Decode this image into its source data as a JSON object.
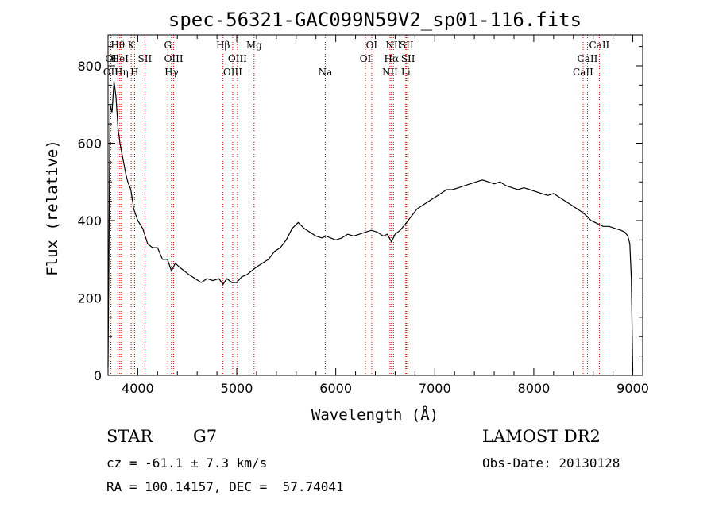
{
  "chart_data": {
    "type": "line",
    "title": "spec-56321-GAC099N59V2_sp01-116.fits",
    "xlabel": "Wavelength (Å)",
    "ylabel": "Flux (relative)",
    "xlim": [
      3700,
      9100
    ],
    "ylim": [
      0,
      880
    ],
    "xticks": [
      4000,
      5000,
      6000,
      7000,
      8000,
      9000
    ],
    "yticks": [
      0,
      200,
      400,
      600,
      800
    ],
    "grid": false,
    "line_color": "#000000",
    "marker_color": "#cc0000",
    "series": [
      {
        "x": [
          3700,
          3720,
          3740,
          3760,
          3780,
          3800,
          3820,
          3850,
          3880,
          3900,
          3930,
          3960,
          4000,
          4050,
          4100,
          4150,
          4200,
          4250,
          4300,
          4340,
          4380,
          4420,
          4470,
          4520,
          4580,
          4640,
          4700,
          4760,
          4820,
          4860,
          4900,
          4950,
          5000,
          5050,
          5100,
          5150,
          5200,
          5260,
          5320,
          5380,
          5440,
          5500,
          5560,
          5620,
          5680,
          5740,
          5800,
          5860,
          5900,
          5950,
          6000,
          6060,
          6120,
          6180,
          6240,
          6300,
          6360,
          6420,
          6480,
          6520,
          6563,
          6600,
          6650,
          6700,
          6760,
          6820,
          6880,
          6940,
          7000,
          7060,
          7120,
          7180,
          7240,
          7300,
          7360,
          7420,
          7480,
          7540,
          7600,
          7660,
          7720,
          7780,
          7840,
          7900,
          7960,
          8020,
          8080,
          8140,
          8200,
          8260,
          8320,
          8380,
          8440,
          8500,
          8540,
          8580,
          8620,
          8662,
          8700,
          8760,
          8820,
          8880,
          8920,
          8950,
          8970,
          8985,
          9000
        ],
        "y": [
          20,
          700,
          680,
          760,
          720,
          640,
          600,
          560,
          520,
          500,
          480,
          430,
          400,
          380,
          340,
          330,
          330,
          300,
          300,
          270,
          290,
          280,
          270,
          260,
          250,
          240,
          250,
          245,
          250,
          235,
          250,
          240,
          240,
          255,
          260,
          270,
          280,
          290,
          300,
          320,
          330,
          350,
          380,
          395,
          380,
          370,
          360,
          355,
          360,
          355,
          350,
          355,
          365,
          360,
          365,
          370,
          375,
          370,
          360,
          365,
          345,
          365,
          375,
          390,
          410,
          430,
          440,
          450,
          460,
          470,
          480,
          480,
          485,
          490,
          495,
          500,
          505,
          500,
          495,
          500,
          490,
          485,
          480,
          485,
          480,
          475,
          470,
          465,
          470,
          460,
          450,
          440,
          430,
          420,
          410,
          400,
          395,
          390,
          385,
          385,
          380,
          375,
          370,
          360,
          340,
          250,
          10
        ]
      }
    ],
    "line_markers": [
      {
        "wavelength": 3727,
        "name": "OII",
        "row": 2
      },
      {
        "wavelength": 3729,
        "name": "OI",
        "row": 1
      },
      {
        "wavelength": 3798,
        "name": "Hθ",
        "row": 0
      },
      {
        "wavelength": 3819,
        "name": "HeI",
        "row": 1
      },
      {
        "wavelength": 3835,
        "name": "Hη",
        "row": 2
      },
      {
        "wavelength": 3934,
        "name": "K",
        "row": 0
      },
      {
        "wavelength": 3968,
        "name": "H",
        "row": 2
      },
      {
        "wavelength": 4072,
        "name": "SII",
        "row": 1
      },
      {
        "wavelength": 4304,
        "name": "G",
        "row": 0
      },
      {
        "wavelength": 4341,
        "name": "Hγ",
        "row": 2
      },
      {
        "wavelength": 4363,
        "name": "OIII",
        "row": 1
      },
      {
        "wavelength": 4861,
        "name": "Hβ",
        "row": 0
      },
      {
        "wavelength": 4959,
        "name": "OIII",
        "row": 2
      },
      {
        "wavelength": 5007,
        "name": "OIII",
        "row": 1
      },
      {
        "wavelength": 5175,
        "name": "Mg",
        "row": 0
      },
      {
        "wavelength": 5894,
        "name": "Na",
        "row": 2
      },
      {
        "wavelength": 6300,
        "name": "OI",
        "row": 1
      },
      {
        "wavelength": 6363,
        "name": "OI",
        "row": 0
      },
      {
        "wavelength": 6548,
        "name": "NII",
        "row": 2
      },
      {
        "wavelength": 6563,
        "name": "Hα",
        "row": 1
      },
      {
        "wavelength": 6583,
        "name": "NII",
        "row": 0
      },
      {
        "wavelength": 6707,
        "name": "Li",
        "row": 2
      },
      {
        "wavelength": 6716,
        "name": "SII",
        "row": 0
      },
      {
        "wavelength": 6730,
        "name": "SII",
        "row": 1
      },
      {
        "wavelength": 8498,
        "name": "CaII",
        "row": 2
      },
      {
        "wavelength": 8542,
        "name": "CaII",
        "row": 1
      },
      {
        "wavelength": 8662,
        "name": "CaII",
        "row": 0
      }
    ]
  },
  "info": {
    "object_class": "STAR",
    "subclass": "G7",
    "redshift": "cz = -61.1 ± 7.3 km/s",
    "coords": "RA = 100.14157, DEC =  57.74041",
    "survey": "LAMOST DR2",
    "obs_date": "Obs-Date: 20130128"
  }
}
